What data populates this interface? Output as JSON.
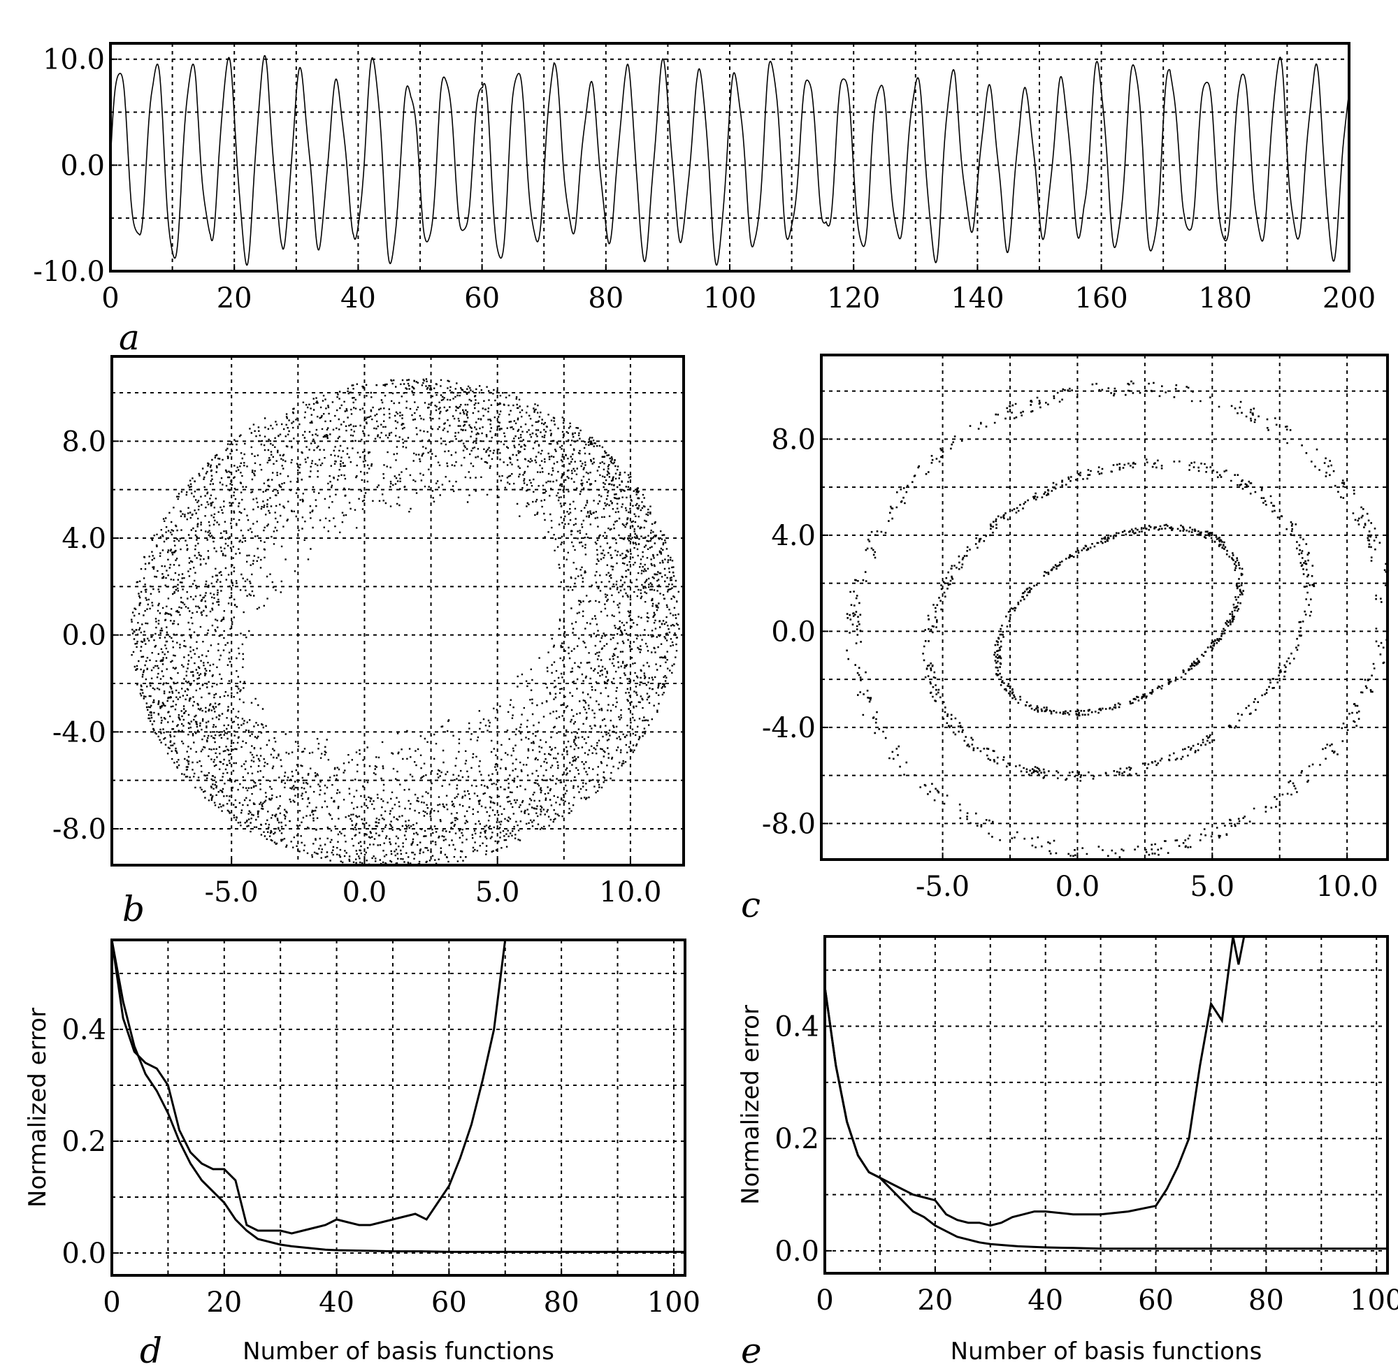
{
  "chart_data": [
    {
      "id": "a",
      "type": "line",
      "panel_label": "a",
      "xlim": [
        0,
        200
      ],
      "ylim": [
        -10,
        11.5
      ],
      "xticks": [
        "0",
        "20",
        "40",
        "60",
        "80",
        "100",
        "120",
        "140",
        "160",
        "180",
        "200"
      ],
      "yticks": [
        "10.0",
        "0.0",
        "-10.0"
      ],
      "xtick_values": [
        0,
        20,
        40,
        60,
        80,
        100,
        120,
        140,
        160,
        180,
        200
      ],
      "ytick_values": [
        10,
        0,
        -10
      ],
      "grid": true,
      "series": [
        {
          "kind": "oscillation",
          "period": 5.85,
          "amplitude_range": [
            6,
            11
          ],
          "offset": 0.5
        }
      ]
    },
    {
      "id": "b",
      "type": "scatter",
      "panel_label": "b",
      "xlim": [
        -9.5,
        12
      ],
      "ylim": [
        -9.5,
        11.5
      ],
      "xticks": [
        "-5.0",
        "0.0",
        "5.0",
        "10.0"
      ],
      "yticks": [
        "8.0",
        "4.0",
        "0.0",
        "-4.0",
        "-8.0"
      ],
      "xtick_values": [
        -5,
        0,
        5,
        10
      ],
      "ytick_values": [
        8,
        4,
        0,
        -4,
        -8
      ],
      "grid": true,
      "series": [
        {
          "kind": "attractor-band",
          "center": [
            1.5,
            0.5
          ],
          "inner_radii": [
            6.5,
            4.0
          ],
          "outer_radii": [
            11,
            10
          ],
          "points": 5000
        }
      ]
    },
    {
      "id": "c",
      "type": "scatter",
      "panel_label": "c",
      "xlim": [
        -9.5,
        11.5
      ],
      "ylim": [
        -9.5,
        11.5
      ],
      "xticks": [
        "-5.0",
        "0.0",
        "5.0",
        "10.0"
      ],
      "yticks": [
        "8.0",
        "4.0",
        "0.0",
        "-4.0",
        "-8.0"
      ],
      "xtick_values": [
        -5,
        0,
        5,
        10
      ],
      "ytick_values": [
        8,
        4,
        0,
        -4,
        -8
      ],
      "grid": true,
      "series": [
        {
          "kind": "nested-loops",
          "center": [
            1.5,
            0.5
          ],
          "radii": [
            [
              10,
              9.5
            ],
            [
              7.5,
              6
            ],
            [
              5,
              3.2
            ]
          ],
          "points": 1500
        }
      ]
    },
    {
      "id": "d",
      "type": "line",
      "panel_label": "d",
      "xlabel": "Number of basis functions",
      "ylabel": "Normalized  error",
      "xlim": [
        0,
        102
      ],
      "ylim": [
        -0.04,
        0.56
      ],
      "xticks": [
        "0",
        "20",
        "40",
        "60",
        "80",
        "100"
      ],
      "yticks": [
        "0.4",
        "0.2",
        "0.0"
      ],
      "xtick_values": [
        0,
        20,
        40,
        60,
        80,
        100
      ],
      "ytick_values": [
        0.4,
        0.2,
        0.0
      ],
      "grid": true,
      "series": [
        {
          "x": [
            0,
            2,
            4,
            6,
            8,
            10,
            12,
            14,
            16,
            18,
            20,
            22,
            24,
            26,
            28,
            30,
            32,
            34,
            36,
            38,
            40,
            42,
            44,
            46,
            48,
            50,
            52,
            54,
            56,
            58,
            60,
            62,
            64,
            66,
            68,
            70
          ],
          "y": [
            0.56,
            0.42,
            0.36,
            0.34,
            0.33,
            0.3,
            0.22,
            0.18,
            0.16,
            0.15,
            0.15,
            0.13,
            0.05,
            0.04,
            0.04,
            0.04,
            0.035,
            0.04,
            0.045,
            0.05,
            0.06,
            0.055,
            0.05,
            0.05,
            0.055,
            0.06,
            0.065,
            0.07,
            0.06,
            0.09,
            0.12,
            0.17,
            0.23,
            0.31,
            0.4,
            0.56
          ]
        },
        {
          "x": [
            0,
            2,
            4,
            6,
            8,
            10,
            12,
            14,
            16,
            18,
            20,
            22,
            24,
            26,
            28,
            30,
            32,
            34,
            36,
            38,
            40,
            45,
            50,
            55,
            60,
            70,
            80,
            90,
            102
          ],
          "y": [
            0.56,
            0.45,
            0.37,
            0.32,
            0.29,
            0.25,
            0.2,
            0.16,
            0.13,
            0.11,
            0.09,
            0.06,
            0.04,
            0.025,
            0.02,
            0.015,
            0.012,
            0.01,
            0.008,
            0.006,
            0.005,
            0.004,
            0.003,
            0.003,
            0.002,
            0.002,
            0.002,
            0.002,
            0.002
          ]
        }
      ]
    },
    {
      "id": "e",
      "type": "line",
      "panel_label": "e",
      "xlabel": "Number of basis functions",
      "ylabel": "Normalized  error",
      "xlim": [
        0,
        102
      ],
      "ylim": [
        -0.04,
        0.56
      ],
      "xticks": [
        "0",
        "20",
        "40",
        "60",
        "80",
        "100"
      ],
      "yticks": [
        "0.4",
        "0.2",
        "0.0"
      ],
      "xtick_values": [
        0,
        20,
        40,
        60,
        80,
        100
      ],
      "ytick_values": [
        0.4,
        0.2,
        0.0
      ],
      "grid": true,
      "series": [
        {
          "x": [
            0,
            2,
            4,
            6,
            8,
            10,
            12,
            14,
            16,
            18,
            20,
            22,
            24,
            26,
            28,
            30,
            32,
            34,
            36,
            38,
            40,
            45,
            50,
            55,
            60,
            62,
            64,
            66,
            68,
            70,
            72,
            74,
            75,
            76,
            77
          ],
          "y": [
            0.47,
            0.33,
            0.23,
            0.17,
            0.14,
            0.13,
            0.12,
            0.11,
            0.1,
            0.095,
            0.09,
            0.065,
            0.055,
            0.05,
            0.05,
            0.045,
            0.05,
            0.06,
            0.065,
            0.07,
            0.07,
            0.065,
            0.065,
            0.07,
            0.08,
            0.11,
            0.15,
            0.2,
            0.33,
            0.44,
            0.41,
            0.56,
            0.51,
            0.56,
            0.56
          ]
        },
        {
          "x": [
            0,
            2,
            4,
            6,
            8,
            10,
            12,
            14,
            16,
            18,
            20,
            22,
            24,
            26,
            28,
            30,
            35,
            40,
            45,
            50,
            60,
            70,
            80,
            90,
            102
          ],
          "y": [
            0.47,
            0.33,
            0.23,
            0.17,
            0.14,
            0.13,
            0.11,
            0.09,
            0.07,
            0.06,
            0.045,
            0.035,
            0.025,
            0.02,
            0.015,
            0.012,
            0.008,
            0.006,
            0.005,
            0.004,
            0.004,
            0.004,
            0.004,
            0.004,
            0.004
          ]
        }
      ]
    }
  ]
}
